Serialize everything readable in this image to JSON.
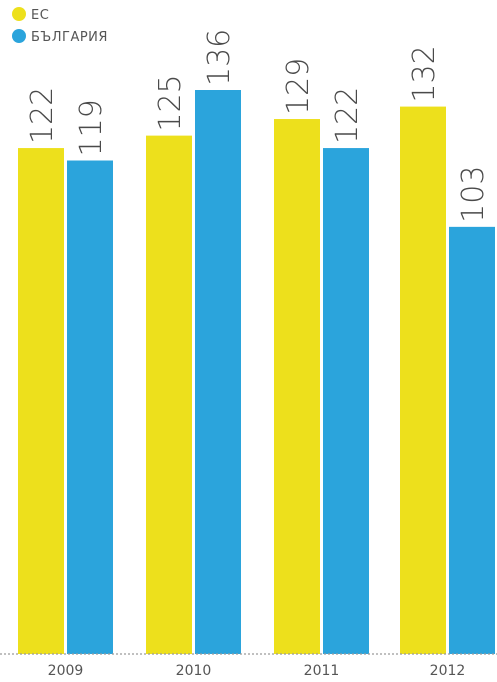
{
  "chart_data": {
    "type": "bar",
    "title": "",
    "xlabel": "",
    "ylabel": "",
    "categories": [
      "2009",
      "2010",
      "2011",
      "2012"
    ],
    "series": [
      {
        "name": "ЕС",
        "color": "#ede01c",
        "values": [
          122,
          125,
          129,
          132
        ]
      },
      {
        "name": "БЪЛГАРИЯ",
        "color": "#2ba4dc",
        "values": [
          119,
          136,
          122,
          103
        ]
      }
    ],
    "ylim": [
      0,
      136
    ],
    "grid": false,
    "legend": "top-left"
  }
}
